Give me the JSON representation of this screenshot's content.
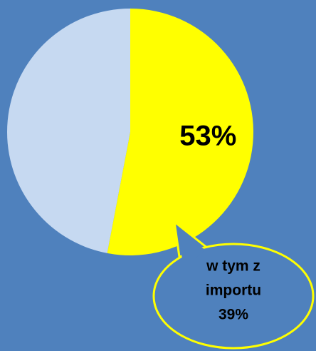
{
  "chart_data": {
    "type": "pie",
    "categories": [
      null,
      null
    ],
    "values": [
      53,
      47
    ],
    "value_labels": [
      "53%",
      null
    ],
    "colors": [
      "#ffff00",
      "#c6d9f1"
    ],
    "annotation": [
      "w tym z",
      "importu",
      "39%"
    ]
  }
}
